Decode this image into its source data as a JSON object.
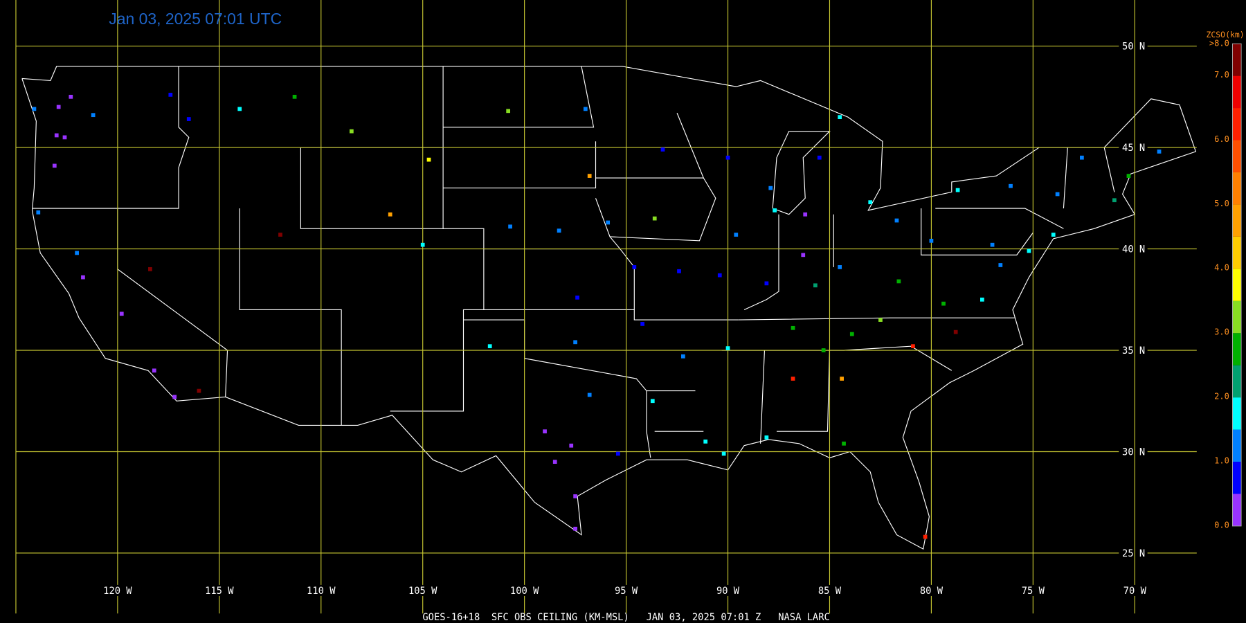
{
  "title": "Jan 03, 2025 07:01 UTC",
  "caption": "GOES-16+18  SFC OBS CEILING (KM-MSL)   JAN 03, 2025 07:01 Z   NASA LARC",
  "longitudes": [
    {
      "value": -120,
      "label": "120 W"
    },
    {
      "value": -115,
      "label": "115 W"
    },
    {
      "value": -110,
      "label": "110 W"
    },
    {
      "value": -105,
      "label": "105 W"
    },
    {
      "value": -100,
      "label": "100 W"
    },
    {
      "value": -95,
      "label": "95 W"
    },
    {
      "value": -90,
      "label": "90 W"
    },
    {
      "value": -85,
      "label": "85 W"
    },
    {
      "value": -80,
      "label": "80 W"
    },
    {
      "value": -75,
      "label": "75 W"
    },
    {
      "value": -70,
      "label": "70 W"
    }
  ],
  "latitudes": [
    {
      "value": 50,
      "label": "50 N"
    },
    {
      "value": 45,
      "label": "45 N"
    },
    {
      "value": 40,
      "label": "40 N"
    },
    {
      "value": 35,
      "label": "35 N"
    },
    {
      "value": 30,
      "label": "30 N"
    },
    {
      "value": 25,
      "label": "25 N"
    }
  ],
  "colorbar": {
    "title": "ZCSO(km)",
    "bins": [
      {
        "from": 0,
        "to": 0.5,
        "color": "#9933ff"
      },
      {
        "from": 0.5,
        "to": 1,
        "color": "#0000ff"
      },
      {
        "from": 1,
        "to": 1.5,
        "color": "#0080ff"
      },
      {
        "from": 1.5,
        "to": 2,
        "color": "#00ffff"
      },
      {
        "from": 2,
        "to": 2.5,
        "color": "#00a070"
      },
      {
        "from": 2.5,
        "to": 3,
        "color": "#00b000"
      },
      {
        "from": 3,
        "to": 3.5,
        "color": "#88dd22"
      },
      {
        "from": 3.5,
        "to": 4,
        "color": "#ffff00"
      },
      {
        "from": 4,
        "to": 4.5,
        "color": "#ffcc00"
      },
      {
        "from": 4.5,
        "to": 5,
        "color": "#ffa000"
      },
      {
        "from": 5,
        "to": 5.5,
        "color": "#ff8000"
      },
      {
        "from": 5.5,
        "to": 6,
        "color": "#ff5000"
      },
      {
        "from": 6,
        "to": 6.5,
        "color": "#ff2000"
      },
      {
        "from": 6.5,
        "to": 7,
        "color": "#ee0000"
      },
      {
        "from": 7,
        "to": 8,
        "color": "#800000"
      }
    ],
    "labels": [
      {
        "value": 0,
        "label": "0.0"
      },
      0.5,
      {
        "value": 1,
        "label": "1.0"
      },
      1.5,
      {
        "value": 2,
        "label": "2.0"
      },
      2.5,
      {
        "value": 3,
        "label": "3.0"
      },
      3.5,
      {
        "value": 4,
        "label": "4.0"
      },
      4.5,
      {
        "value": 5,
        "label": "5.0"
      },
      5.5,
      {
        "value": 6,
        "label": "6.0"
      },
      6.5,
      {
        "value": 7,
        "label": "7.0"
      },
      {
        "value": 8,
        "label": ">8.0"
      }
    ]
  },
  "stations": [
    {
      "lon": -122.3,
      "lat": 47.5,
      "ceiling": 0.3
    },
    {
      "lon": -122.9,
      "lat": 47.0,
      "ceiling": 0.3
    },
    {
      "lon": -123.0,
      "lat": 45.6,
      "ceiling": 0.3
    },
    {
      "lon": -122.6,
      "lat": 45.5,
      "ceiling": 0.3
    },
    {
      "lon": -123.1,
      "lat": 44.1,
      "ceiling": 0.4
    },
    {
      "lon": -124.1,
      "lat": 46.9,
      "ceiling": 1.2
    },
    {
      "lon": -123.9,
      "lat": 41.8,
      "ceiling": 1.2
    },
    {
      "lon": -121.2,
      "lat": 46.6,
      "ceiling": 1.2
    },
    {
      "lon": -117.4,
      "lat": 47.6,
      "ceiling": 0.8
    },
    {
      "lon": -116.5,
      "lat": 46.4,
      "ceiling": 0.8
    },
    {
      "lon": -114.0,
      "lat": 46.9,
      "ceiling": 1.8
    },
    {
      "lon": -111.3,
      "lat": 47.5,
      "ceiling": 2.8
    },
    {
      "lon": -108.5,
      "lat": 45.8,
      "ceiling": 3.2
    },
    {
      "lon": -104.7,
      "lat": 44.4,
      "ceiling": 3.8
    },
    {
      "lon": -106.6,
      "lat": 41.7,
      "ceiling": 4.8
    },
    {
      "lon": -105.0,
      "lat": 40.2,
      "ceiling": 1.8
    },
    {
      "lon": -100.8,
      "lat": 46.8,
      "ceiling": 3.2
    },
    {
      "lon": -97.0,
      "lat": 46.9,
      "ceiling": 1.2
    },
    {
      "lon": -96.8,
      "lat": 43.6,
      "ceiling": 4.6
    },
    {
      "lon": -98.3,
      "lat": 40.9,
      "ceiling": 1.2
    },
    {
      "lon": -97.4,
      "lat": 37.6,
      "ceiling": 0.8
    },
    {
      "lon": -95.9,
      "lat": 41.3,
      "ceiling": 1.2
    },
    {
      "lon": -93.6,
      "lat": 41.5,
      "ceiling": 3.2
    },
    {
      "lon": -93.2,
      "lat": 44.9,
      "ceiling": 0.8
    },
    {
      "lon": -90.0,
      "lat": 44.5,
      "ceiling": 0.8
    },
    {
      "lon": -87.9,
      "lat": 43.0,
      "ceiling": 1.2
    },
    {
      "lon": -87.7,
      "lat": 41.9,
      "ceiling": 1.8
    },
    {
      "lon": -86.3,
      "lat": 39.7,
      "ceiling": 0.3
    },
    {
      "lon": -84.5,
      "lat": 39.1,
      "ceiling": 1.2
    },
    {
      "lon": -83.0,
      "lat": 42.3,
      "ceiling": 1.8
    },
    {
      "lon": -85.5,
      "lat": 44.5,
      "ceiling": 0.8
    },
    {
      "lon": -84.5,
      "lat": 46.5,
      "ceiling": 1.8
    },
    {
      "lon": -81.7,
      "lat": 41.4,
      "ceiling": 1.2
    },
    {
      "lon": -80.0,
      "lat": 40.4,
      "ceiling": 1.2
    },
    {
      "lon": -77.0,
      "lat": 40.2,
      "ceiling": 1.2
    },
    {
      "lon": -75.2,
      "lat": 39.9,
      "ceiling": 1.8
    },
    {
      "lon": -74.0,
      "lat": 40.7,
      "ceiling": 1.8
    },
    {
      "lon": -73.8,
      "lat": 42.7,
      "ceiling": 1.2
    },
    {
      "lon": -71.0,
      "lat": 42.4,
      "ceiling": 2.2
    },
    {
      "lon": -70.3,
      "lat": 43.6,
      "ceiling": 2.8
    },
    {
      "lon": -68.8,
      "lat": 44.8,
      "ceiling": 1.2
    },
    {
      "lon": -72.6,
      "lat": 44.5,
      "ceiling": 1.2
    },
    {
      "lon": -76.1,
      "lat": 43.1,
      "ceiling": 1.2
    },
    {
      "lon": -78.7,
      "lat": 42.9,
      "ceiling": 1.8
    },
    {
      "lon": -86.8,
      "lat": 36.1,
      "ceiling": 2.8
    },
    {
      "lon": -85.3,
      "lat": 35.0,
      "ceiling": 2.8
    },
    {
      "lon": -84.4,
      "lat": 33.6,
      "ceiling": 4.8
    },
    {
      "lon": -86.8,
      "lat": 33.6,
      "ceiling": 6.3
    },
    {
      "lon": -90.0,
      "lat": 35.1,
      "ceiling": 1.8
    },
    {
      "lon": -92.2,
      "lat": 34.7,
      "ceiling": 1.2
    },
    {
      "lon": -88.1,
      "lat": 38.3,
      "ceiling": 0.8
    },
    {
      "lon": -90.4,
      "lat": 38.7,
      "ceiling": 0.8
    },
    {
      "lon": -94.6,
      "lat": 39.1,
      "ceiling": 0.8
    },
    {
      "lon": -97.5,
      "lat": 35.4,
      "ceiling": 1.2
    },
    {
      "lon": -96.8,
      "lat": 32.8,
      "ceiling": 1.2
    },
    {
      "lon": -95.4,
      "lat": 29.9,
      "ceiling": 0.8
    },
    {
      "lon": -97.7,
      "lat": 30.3,
      "ceiling": 0.3
    },
    {
      "lon": -98.5,
      "lat": 29.5,
      "ceiling": 0.3
    },
    {
      "lon": -97.5,
      "lat": 27.8,
      "ceiling": 0.3
    },
    {
      "lon": -97.5,
      "lat": 26.2,
      "ceiling": 0.3
    },
    {
      "lon": -99.0,
      "lat": 31.0,
      "ceiling": 0.3
    },
    {
      "lon": -93.7,
      "lat": 32.5,
      "ceiling": 1.8
    },
    {
      "lon": -91.1,
      "lat": 30.5,
      "ceiling": 1.8
    },
    {
      "lon": -90.2,
      "lat": 29.9,
      "ceiling": 1.8
    },
    {
      "lon": -88.1,
      "lat": 30.7,
      "ceiling": 1.8
    },
    {
      "lon": -84.3,
      "lat": 30.4,
      "ceiling": 2.8
    },
    {
      "lon": -80.3,
      "lat": 25.8,
      "ceiling": 6.3
    },
    {
      "lon": -78.8,
      "lat": 35.9,
      "ceiling": 7.5
    },
    {
      "lon": -80.9,
      "lat": 35.2,
      "ceiling": 6.3
    },
    {
      "lon": -79.4,
      "lat": 37.3,
      "ceiling": 2.8
    },
    {
      "lon": -77.5,
      "lat": 37.5,
      "ceiling": 1.8
    },
    {
      "lon": -76.6,
      "lat": 39.2,
      "ceiling": 1.2
    },
    {
      "lon": -112.0,
      "lat": 40.7,
      "ceiling": 7.5
    },
    {
      "lon": -118.2,
      "lat": 34.0,
      "ceiling": 0.3
    },
    {
      "lon": -117.2,
      "lat": 32.7,
      "ceiling": 0.3
    },
    {
      "lon": -116.0,
      "lat": 33.0,
      "ceiling": 7.5
    },
    {
      "lon": -119.8,
      "lat": 36.8,
      "ceiling": 0.3
    },
    {
      "lon": -121.7,
      "lat": 38.6,
      "ceiling": 0.3
    },
    {
      "lon": -122.0,
      "lat": 39.8,
      "ceiling": 1.2
    },
    {
      "lon": -118.4,
      "lat": 39.0,
      "ceiling": 7.5
    },
    {
      "lon": -89.6,
      "lat": 40.7,
      "ceiling": 1.2
    },
    {
      "lon": -86.2,
      "lat": 41.7,
      "ceiling": 0.3
    },
    {
      "lon": -85.7,
      "lat": 38.2,
      "ceiling": 2.2
    },
    {
      "lon": -83.9,
      "lat": 35.8,
      "ceiling": 2.8
    },
    {
      "lon": -82.5,
      "lat": 36.5,
      "ceiling": 3.2
    },
    {
      "lon": -81.6,
      "lat": 38.4,
      "ceiling": 2.8
    },
    {
      "lon": -100.7,
      "lat": 41.1,
      "ceiling": 1.2
    },
    {
      "lon": -101.7,
      "lat": 35.2,
      "ceiling": 1.8
    },
    {
      "lon": -94.2,
      "lat": 36.3,
      "ceiling": 0.8
    },
    {
      "lon": -92.4,
      "lat": 38.9,
      "ceiling": 0.8
    }
  ]
}
